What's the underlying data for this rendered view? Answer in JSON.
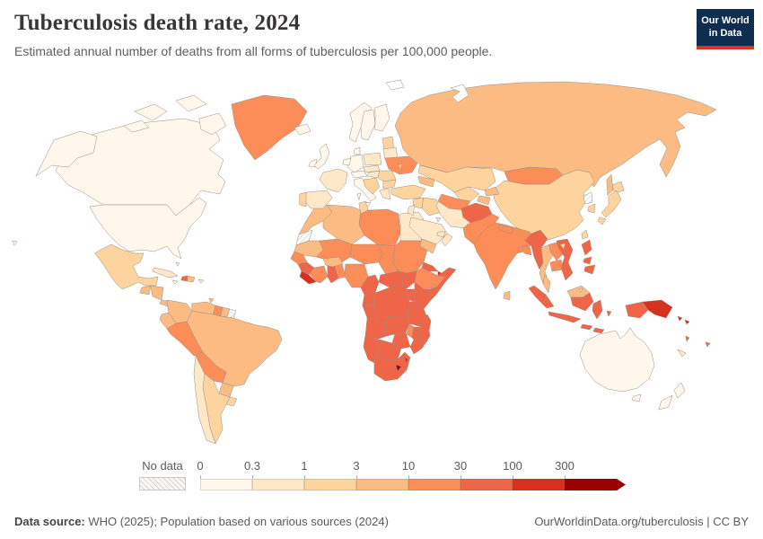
{
  "header": {
    "title": "Tuberculosis death rate, 2024",
    "subtitle": "Estimated annual number of deaths from all forms of tuberculosis per 100,000 people.",
    "logo_line1": "Our World",
    "logo_line2": "in Data",
    "logo_bg": "#0f2d4e",
    "logo_accent": "#d8352a"
  },
  "legend": {
    "no_data_label": "No data",
    "tick_labels": [
      "0",
      "0.3",
      "1",
      "3",
      "10",
      "30",
      "100",
      "300"
    ]
  },
  "footer": {
    "source_label": "Data source:",
    "source_text": " WHO (2025); Population based on various sources (2024)",
    "link": "OurWorldinData.org/tuberculosis",
    "separator": " | ",
    "license": "CC BY"
  },
  "chart_data": {
    "type": "heatmap",
    "subtype": "world-choropleth",
    "title": "Tuberculosis death rate, 2024",
    "unit": "deaths per 100,000 people",
    "scale": {
      "bins": [
        "0-0.3",
        "0.3-1",
        "1-3",
        "3-10",
        "10-30",
        "30-100",
        "100-300",
        "300+"
      ],
      "palette": [
        "#fff7ec",
        "#fee8c8",
        "#fdd49e",
        "#fdbb84",
        "#fc8d59",
        "#ef6548",
        "#d7301f",
        "#990000"
      ],
      "no_data": "hatched"
    },
    "regions": [
      {
        "id": "russia",
        "name": "Russia",
        "bin": 3
      },
      {
        "id": "canada",
        "name": "Canada",
        "bin": 0
      },
      {
        "id": "usa",
        "name": "United States",
        "bin": 0
      },
      {
        "id": "greenland",
        "name": "Greenland",
        "bin": 4
      },
      {
        "id": "brazil",
        "name": "Brazil",
        "bin": 3
      },
      {
        "id": "china",
        "name": "China",
        "bin": 2
      },
      {
        "id": "australia",
        "name": "Australia",
        "bin": 0
      },
      {
        "id": "india",
        "name": "India",
        "bin": 4
      },
      {
        "id": "kazakhstan",
        "name": "Kazakhstan",
        "bin": 2
      },
      {
        "id": "morocco",
        "name": "Morocco",
        "bin": 3
      },
      {
        "id": "western-sahara",
        "name": "Western Sahara",
        "bin": null,
        "status": "no-data"
      },
      {
        "id": "algeria",
        "name": "Algeria",
        "bin": 3
      },
      {
        "id": "tunisia",
        "name": "Tunisia",
        "bin": 2
      },
      {
        "id": "libya",
        "name": "Libya",
        "bin": 4
      },
      {
        "id": "egypt",
        "name": "Egypt",
        "bin": 1
      },
      {
        "id": "mauritania",
        "name": "Mauritania",
        "bin": 3
      },
      {
        "id": "mali",
        "name": "Mali",
        "bin": 4
      },
      {
        "id": "niger",
        "name": "Niger",
        "bin": 4
      },
      {
        "id": "chad",
        "name": "Chad",
        "bin": 4
      },
      {
        "id": "sudan",
        "name": "Sudan",
        "bin": 4
      },
      {
        "id": "eritrea",
        "name": "Eritrea",
        "bin": 5
      },
      {
        "id": "djibouti",
        "name": "Djibouti",
        "bin": 6
      },
      {
        "id": "ethiopia",
        "name": "Ethiopia",
        "bin": 4
      },
      {
        "id": "somalia",
        "name": "Somalia",
        "bin": 5
      },
      {
        "id": "senegal",
        "name": "Senegal",
        "bin": 4
      },
      {
        "id": "guinea",
        "name": "Guinea",
        "bin": 5
      },
      {
        "id": "sierra-leone-liberia",
        "name": "Sierra Leone and Liberia",
        "bin": 6
      },
      {
        "id": "ivory-coast",
        "name": "Cote d'Ivoire",
        "bin": 4
      },
      {
        "id": "ghana",
        "name": "Ghana",
        "bin": 5
      },
      {
        "id": "togo-benin",
        "name": "Togo and Benin",
        "bin": 4
      },
      {
        "id": "burkina-faso",
        "name": "Burkina Faso",
        "bin": 3
      },
      {
        "id": "nigeria",
        "name": "Nigeria",
        "bin": 4
      },
      {
        "id": "cameroon",
        "name": "Cameroon",
        "bin": 5
      },
      {
        "id": "central-african-republic",
        "name": "Central African Republic",
        "bin": 5
      },
      {
        "id": "south-sudan",
        "name": "South Sudan",
        "bin": 5
      },
      {
        "id": "gabon-congo",
        "name": "Gabon and Congo",
        "bin": 5
      },
      {
        "id": "drc",
        "name": "Democratic Republic of Congo",
        "bin": 5
      },
      {
        "id": "uganda",
        "name": "Uganda",
        "bin": 5
      },
      {
        "id": "kenya",
        "name": "Kenya",
        "bin": 5
      },
      {
        "id": "rwanda-burundi",
        "name": "Rwanda and Burundi",
        "bin": 6
      },
      {
        "id": "tanzania",
        "name": "Tanzania",
        "bin": 5
      },
      {
        "id": "angola",
        "name": "Angola",
        "bin": 5
      },
      {
        "id": "zambia",
        "name": "Zambia",
        "bin": 5
      },
      {
        "id": "malawi",
        "name": "Malawi",
        "bin": 4
      },
      {
        "id": "mozambique",
        "name": "Mozambique",
        "bin": 5
      },
      {
        "id": "zimbabwe",
        "name": "Zimbabwe",
        "bin": 5
      },
      {
        "id": "botswana",
        "name": "Botswana",
        "bin": 5
      },
      {
        "id": "namibia",
        "name": "Namibia",
        "bin": 5
      },
      {
        "id": "south-africa",
        "name": "South Africa",
        "bin": 5
      },
      {
        "id": "lesotho",
        "name": "Lesotho",
        "bin": 7
      },
      {
        "id": "eswatini",
        "name": "Eswatini",
        "bin": 6
      },
      {
        "id": "madagascar",
        "name": "Madagascar",
        "bin": 5
      },
      {
        "id": "turkey",
        "name": "Turkey",
        "bin": 2
      },
      {
        "id": "cyprus",
        "name": "Cyprus",
        "bin": 1
      },
      {
        "id": "syria",
        "name": "Syria",
        "bin": 2
      },
      {
        "id": "iraq",
        "name": "Iraq",
        "bin": 2
      },
      {
        "id": "iran",
        "name": "Iran",
        "bin": 1
      },
      {
        "id": "israel-jordan",
        "name": "Israel and Jordan",
        "bin": 1
      },
      {
        "id": "saudi-arabia",
        "name": "Saudi Arabia",
        "bin": 1
      },
      {
        "id": "kuwait",
        "name": "Kuwait",
        "bin": 1
      },
      {
        "id": "yemen",
        "name": "Yemen",
        "bin": 3
      },
      {
        "id": "oman",
        "name": "Oman",
        "bin": 1
      },
      {
        "id": "uae-qatar",
        "name": "United Arab Emirates and Qatar",
        "bin": 1
      },
      {
        "id": "caucasus",
        "name": "Georgia, Armenia and Azerbaijan",
        "bin": 3
      },
      {
        "id": "uzbekistan",
        "name": "Uzbekistan",
        "bin": 2
      },
      {
        "id": "turkmenistan",
        "name": "Turkmenistan",
        "bin": 4
      },
      {
        "id": "kyrgyzstan",
        "name": "Kyrgyzstan",
        "bin": 3
      },
      {
        "id": "tajikistan",
        "name": "Tajikistan",
        "bin": 3
      },
      {
        "id": "afghanistan",
        "name": "Afghanistan",
        "bin": 5
      },
      {
        "id": "pakistan",
        "name": "Pakistan",
        "bin": 4
      },
      {
        "id": "nepal",
        "name": "Nepal",
        "bin": 4
      },
      {
        "id": "bangladesh",
        "name": "Bangladesh",
        "bin": 4
      },
      {
        "id": "sri-lanka",
        "name": "Sri Lanka",
        "bin": 3
      },
      {
        "id": "myanmar",
        "name": "Myanmar",
        "bin": 5
      },
      {
        "id": "thailand",
        "name": "Thailand",
        "bin": 3
      },
      {
        "id": "laos",
        "name": "Laos",
        "bin": 4
      },
      {
        "id": "cambodia",
        "name": "Cambodia",
        "bin": 4
      },
      {
        "id": "vietnam",
        "name": "Vietnam",
        "bin": 5
      },
      {
        "id": "malaysia",
        "name": "Malaysia (peninsula)",
        "bin": 3
      },
      {
        "id": "borneo-malaysia",
        "name": "Malaysia (Borneo)",
        "bin": 3
      },
      {
        "id": "brunei",
        "name": "Brunei",
        "bin": 1
      },
      {
        "id": "sumatra",
        "name": "Indonesia (Sumatra)",
        "bin": 5
      },
      {
        "id": "java",
        "name": "Indonesia (Java)",
        "bin": 5
      },
      {
        "id": "borneo-indonesia",
        "name": "Indonesia (Kalimantan)",
        "bin": 5
      },
      {
        "id": "sulawesi",
        "name": "Indonesia (Sulawesi)",
        "bin": 5
      },
      {
        "id": "lesser-sunda-1",
        "name": "Indonesia (Lesser Sunda)",
        "bin": 5
      },
      {
        "id": "lesser-sunda-2",
        "name": "Indonesia (Lesser Sunda east)",
        "bin": 5
      },
      {
        "id": "maluku",
        "name": "Indonesia (Maluku)",
        "bin": 5
      },
      {
        "id": "west-papua",
        "name": "Indonesia (Papua)",
        "bin": 5
      },
      {
        "id": "png",
        "name": "Papua New Guinea",
        "bin": 6
      },
      {
        "id": "luzon",
        "name": "Philippines (Luzon)",
        "bin": 5
      },
      {
        "id": "visayas",
        "name": "Philippines (Visayas)",
        "bin": 5
      },
      {
        "id": "mindanao",
        "name": "Philippines (Mindanao)",
        "bin": 5
      },
      {
        "id": "taiwan",
        "name": "Taiwan",
        "bin": 2
      },
      {
        "id": "hainan",
        "name": "Hainan",
        "bin": 2
      },
      {
        "id": "mongolia",
        "name": "Mongolia",
        "bin": 4
      },
      {
        "id": "north-korea",
        "name": "North Korea",
        "bin": null,
        "status": "no-data"
      },
      {
        "id": "south-korea",
        "name": "South Korea",
        "bin": 2
      },
      {
        "id": "hokkaido",
        "name": "Japan (Hokkaido)",
        "bin": 2
      },
      {
        "id": "honshu",
        "name": "Japan (Honshu)",
        "bin": 2
      },
      {
        "id": "kyushu",
        "name": "Japan (Kyushu)",
        "bin": 2
      },
      {
        "id": "sakhalin",
        "name": "Russia (Sakhalin)",
        "bin": 3
      },
      {
        "id": "norway",
        "name": "Norway",
        "bin": 0
      },
      {
        "id": "sweden",
        "name": "Sweden",
        "bin": 0
      },
      {
        "id": "finland",
        "name": "Finland",
        "bin": 0
      },
      {
        "id": "iceland",
        "name": "Iceland",
        "bin": 0
      },
      {
        "id": "ireland",
        "name": "Ireland",
        "bin": 0
      },
      {
        "id": "uk",
        "name": "United Kingdom",
        "bin": 0
      },
      {
        "id": "denmark",
        "name": "Denmark",
        "bin": 0
      },
      {
        "id": "germany",
        "name": "Germany",
        "bin": 0
      },
      {
        "id": "benelux",
        "name": "Belgium and Netherlands",
        "bin": 0
      },
      {
        "id": "france",
        "name": "France",
        "bin": 1
      },
      {
        "id": "spain",
        "name": "Spain",
        "bin": 1
      },
      {
        "id": "portugal",
        "name": "Portugal",
        "bin": 2
      },
      {
        "id": "switzerland-austria",
        "name": "Switzerland and Austria",
        "bin": 0
      },
      {
        "id": "italy",
        "name": "Italy",
        "bin": 0
      },
      {
        "id": "sicily",
        "name": "Italy (Sicily)",
        "bin": 0
      },
      {
        "id": "sardinia",
        "name": "Italy (Sardinia)",
        "bin": 0
      },
      {
        "id": "czech-slovakia",
        "name": "Czechia and Slovakia",
        "bin": 1
      },
      {
        "id": "poland",
        "name": "Poland",
        "bin": 1
      },
      {
        "id": "hungary",
        "name": "Hungary",
        "bin": 1
      },
      {
        "id": "balkans",
        "name": "Western Balkans",
        "bin": 2
      },
      {
        "id": "romania",
        "name": "Romania",
        "bin": 2
      },
      {
        "id": "bulgaria",
        "name": "Bulgaria",
        "bin": 2
      },
      {
        "id": "greece",
        "name": "Greece",
        "bin": 1
      },
      {
        "id": "baltics",
        "name": "Baltic states",
        "bin": 2
      },
      {
        "id": "belarus",
        "name": "Belarus",
        "bin": 1
      },
      {
        "id": "ukraine",
        "name": "Ukraine",
        "bin": 4
      },
      {
        "id": "moldova",
        "name": "Moldova",
        "bin": 3
      },
      {
        "id": "svalbard",
        "name": "Svalbard",
        "bin": null,
        "status": "outline"
      },
      {
        "id": "novaya-zemlya",
        "name": "Novaya Zemlya",
        "bin": null,
        "status": "outline"
      },
      {
        "id": "alaska",
        "name": "United States (Alaska)",
        "bin": 0
      },
      {
        "id": "arctic1",
        "name": "Canada (Arctic islands)",
        "bin": 0
      },
      {
        "id": "arctic2",
        "name": "Canada (Arctic islands)",
        "bin": 0
      },
      {
        "id": "arctic3",
        "name": "Canada (Arctic islands)",
        "bin": 0
      },
      {
        "id": "baffin",
        "name": "Canada (Baffin Island)",
        "bin": 0
      },
      {
        "id": "hawaii",
        "name": "United States (Hawaii)",
        "bin": 0
      },
      {
        "id": "mexico",
        "name": "Mexico",
        "bin": 2
      },
      {
        "id": "guatemala",
        "name": "Guatemala",
        "bin": 3
      },
      {
        "id": "honduras-nicaragua",
        "name": "Honduras and Nicaragua",
        "bin": 3
      },
      {
        "id": "costa-rica-panama",
        "name": "Costa Rica and Panama",
        "bin": 3
      },
      {
        "id": "cuba",
        "name": "Cuba",
        "bin": 1
      },
      {
        "id": "jamaica",
        "name": "Jamaica",
        "bin": 0
      },
      {
        "id": "haiti",
        "name": "Haiti",
        "bin": 5
      },
      {
        "id": "dominican-republic",
        "name": "Dominican Republic",
        "bin": 3
      },
      {
        "id": "puerto-rico",
        "name": "Puerto Rico",
        "bin": 1
      },
      {
        "id": "bahamas",
        "name": "Bahamas",
        "bin": 0
      },
      {
        "id": "trinidad",
        "name": "Trinidad and Tobago",
        "bin": 3
      },
      {
        "id": "colombia",
        "name": "Colombia",
        "bin": 3
      },
      {
        "id": "venezuela",
        "name": "Venezuela",
        "bin": 3
      },
      {
        "id": "guyana",
        "name": "Guyana",
        "bin": 4
      },
      {
        "id": "suriname",
        "name": "Suriname",
        "bin": 3
      },
      {
        "id": "french-guiana",
        "name": "French Guiana",
        "bin": null,
        "status": "no-data"
      },
      {
        "id": "ecuador",
        "name": "Ecuador",
        "bin": 3
      },
      {
        "id": "peru",
        "name": "Peru",
        "bin": 4
      },
      {
        "id": "bolivia",
        "name": "Bolivia",
        "bin": 4
      },
      {
        "id": "paraguay",
        "name": "Paraguay",
        "bin": 3
      },
      {
        "id": "uruguay",
        "name": "Uruguay",
        "bin": 2
      },
      {
        "id": "argentina",
        "name": "Argentina",
        "bin": 2
      },
      {
        "id": "chile",
        "name": "Chile",
        "bin": 1
      },
      {
        "id": "tasmania",
        "name": "Australia (Tasmania)",
        "bin": 0
      },
      {
        "id": "nz-north",
        "name": "New Zealand (North Island)",
        "bin": 0
      },
      {
        "id": "nz-south",
        "name": "New Zealand (South Island)",
        "bin": 0
      },
      {
        "id": "new-caledonia",
        "name": "New Caledonia",
        "bin": 1
      },
      {
        "id": "fiji",
        "name": "Fiji",
        "bin": 5
      },
      {
        "id": "vanuatu",
        "name": "Vanuatu",
        "bin": 5
      },
      {
        "id": "solomon-1",
        "name": "Solomon Islands",
        "bin": 6
      },
      {
        "id": "solomon-2",
        "name": "Solomon Islands (east)",
        "bin": 6
      }
    ]
  }
}
